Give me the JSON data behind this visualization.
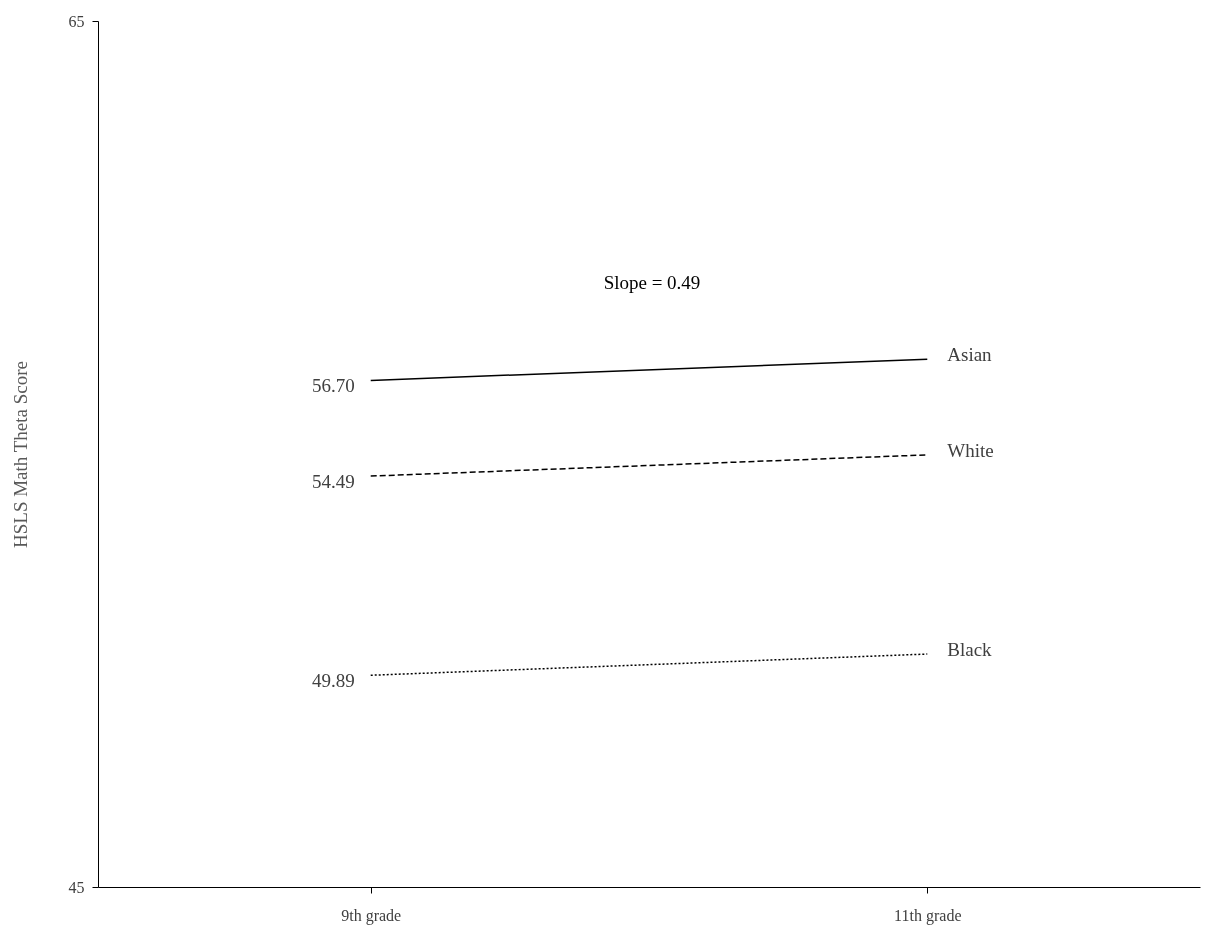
{
  "chart_data": {
    "type": "line",
    "ylabel": "HSLS Math Theta Score",
    "categories": [
      "9th grade",
      "11th grade"
    ],
    "ylim": [
      45,
      65
    ],
    "yticks": [
      45,
      65
    ],
    "grid": false,
    "marker": "none",
    "annotations": [
      "Slope = 0.49"
    ],
    "series": [
      {
        "name": "Asian",
        "color": "#000000",
        "line_style": "solid",
        "values": [
          56.7,
          57.19
        ],
        "value_labels": [
          "56.70",
          null
        ]
      },
      {
        "name": "White",
        "color": "#000000",
        "line_style": "dashed",
        "values": [
          54.49,
          54.98
        ],
        "value_labels": [
          "54.49",
          null
        ]
      },
      {
        "name": "Black",
        "color": "#000000",
        "line_style": "dotted",
        "values": [
          49.89,
          50.38
        ],
        "value_labels": [
          "49.89",
          null
        ]
      }
    ]
  }
}
